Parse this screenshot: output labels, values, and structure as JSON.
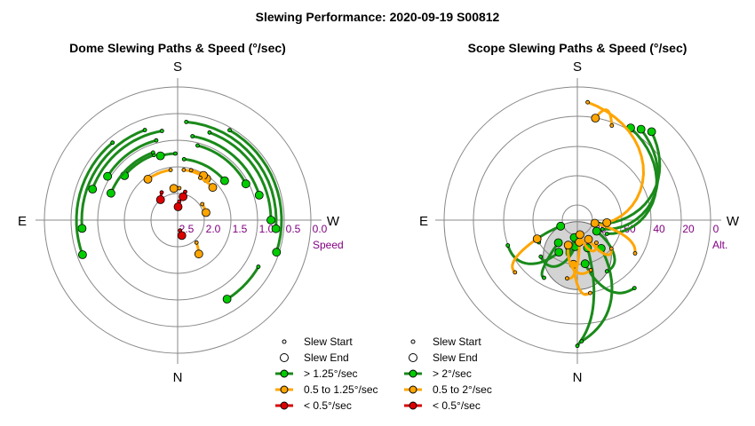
{
  "page_title": "Slewing Performance: 2020-09-19 S00812",
  "colors": {
    "fast": "#00cc00",
    "fast_line": "#1a8a1a",
    "medium": "#ffa500",
    "slow": "#dd0000",
    "grid": "#888888",
    "tick": "#800080",
    "obstruction": "#d3d3d3"
  },
  "chart_data": [
    {
      "type": "polar",
      "title": "Dome Slewing Paths & Speed (°/sec)",
      "cardinals": {
        "top": "S",
        "left": "E",
        "right": "W",
        "bottom": "N"
      },
      "radial_ticks": [
        "2.5",
        "2.0",
        "1.5",
        "1.0",
        "0.5",
        "0.0"
      ],
      "radial_axis_label": "Speed",
      "rmin": 0.0,
      "rmax": 2.5,
      "legend": [
        {
          "marker": "start",
          "label": "Slew Start"
        },
        {
          "marker": "end",
          "label": "Slew End"
        },
        {
          "marker": "fast",
          "label": "> 1.25°/sec"
        },
        {
          "marker": "medium",
          "label": "0.5 to 1.25°/sec"
        },
        {
          "marker": "slow",
          "label": "< 0.5°/sec"
        }
      ],
      "slews": [
        {
          "speed": "slow",
          "r1": 0.35,
          "a1": 5,
          "r2": 0.25,
          "a2": 2
        },
        {
          "speed": "slow",
          "r1": 0.55,
          "a1": 15,
          "r2": 0.45,
          "a2": 13
        },
        {
          "speed": "slow",
          "r1": 0.6,
          "a1": -30,
          "r2": 0.5,
          "a2": -40
        },
        {
          "speed": "slow",
          "r1": 0.2,
          "a1": 167,
          "r2": 0.3,
          "a2": 165
        },
        {
          "speed": "medium",
          "r1": 0.6,
          "a1": 3,
          "r2": 0.6,
          "a2": -7
        },
        {
          "speed": "medium",
          "r1": 0.95,
          "a1": -8,
          "r2": 0.95,
          "a2": -36
        },
        {
          "speed": "medium",
          "r1": 0.95,
          "a1": 7,
          "r2": 0.95,
          "a2": 35
        },
        {
          "speed": "medium",
          "r1": 0.97,
          "a1": 15,
          "r2": 0.97,
          "a2": 30
        },
        {
          "speed": "medium",
          "r1": 0.55,
          "a1": 57,
          "r2": 0.55,
          "a2": 75
        },
        {
          "speed": "medium",
          "r1": 0.9,
          "a1": 28,
          "r2": 0.9,
          "a2": 47
        },
        {
          "speed": "medium",
          "r1": 0.55,
          "a1": 140,
          "r2": 0.75,
          "a2": 148
        },
        {
          "speed": "fast",
          "r1": 1.25,
          "a1": -2,
          "r2": 1.25,
          "a2": -15
        },
        {
          "speed": "fast",
          "r1": 1.3,
          "a1": -20,
          "r2": 1.3,
          "a2": -50
        },
        {
          "speed": "fast",
          "r1": 1.15,
          "a1": 6,
          "r2": 1.15,
          "a2": 50
        },
        {
          "speed": "fast",
          "r1": 1.35,
          "a1": -20,
          "r2": 1.35,
          "a2": -68
        },
        {
          "speed": "fast",
          "r1": 1.45,
          "a1": 15,
          "r2": 1.45,
          "a2": 62
        },
        {
          "speed": "fast",
          "r1": 1.55,
          "a1": -15,
          "r2": 1.55,
          "a2": -58
        },
        {
          "speed": "fast",
          "r1": 1.6,
          "a1": 10,
          "r2": 1.6,
          "a2": 73
        },
        {
          "speed": "fast",
          "r1": 1.7,
          "a1": -10,
          "r2": 1.7,
          "a2": -70
        },
        {
          "speed": "fast",
          "r1": 1.75,
          "a1": 20,
          "r2": 1.75,
          "a2": 90
        },
        {
          "speed": "fast",
          "r1": 1.85,
          "a1": 5,
          "r2": 1.85,
          "a2": 95
        },
        {
          "speed": "fast",
          "r1": 1.8,
          "a1": -20,
          "r2": 1.8,
          "a2": -95
        },
        {
          "speed": "fast",
          "r1": 1.9,
          "a1": -40,
          "r2": 1.9,
          "a2": -110
        },
        {
          "speed": "fast",
          "r1": 1.95,
          "a1": 30,
          "r2": 1.95,
          "a2": 108
        },
        {
          "speed": "fast",
          "r1": 1.75,
          "a1": 120,
          "r2": 1.75,
          "a2": 148
        }
      ]
    },
    {
      "type": "polar",
      "title": "Scope Slewing Paths & Speed (°/sec)",
      "cardinals": {
        "top": "S",
        "left": "E",
        "right": "W",
        "bottom": "N"
      },
      "radial_ticks": [
        "80",
        "60",
        "40",
        "20",
        "0"
      ],
      "radial_axis_label": "Alt.",
      "rmin": 90,
      "rmax": 0,
      "obstruction": {
        "alt": 66,
        "az": 0,
        "radius_alt": 23
      },
      "legend": [
        {
          "marker": "start",
          "label": "Slew Start"
        },
        {
          "marker": "end",
          "label": "Slew End"
        },
        {
          "marker": "fast",
          "label": "> 2°/sec"
        },
        {
          "marker": "medium",
          "label": "0.5 to 2°/sec"
        },
        {
          "marker": "slow",
          "label": "< 0.5°/sec"
        }
      ],
      "slews": [
        {
          "speed": "fast",
          "alt1": 5,
          "az1": 180,
          "alt2": 70,
          "az2": 160
        },
        {
          "speed": "fast",
          "alt1": 8,
          "az1": 178,
          "alt2": 65,
          "az2": 140
        },
        {
          "speed": "fast",
          "alt1": 50,
          "az1": 150,
          "alt2": 75,
          "az2": 120
        },
        {
          "speed": "fast",
          "alt1": 45,
          "az1": 210,
          "alt2": 70,
          "az2": 220
        },
        {
          "speed": "fast",
          "alt1": 60,
          "az1": 240,
          "alt2": 78,
          "az2": 250
        },
        {
          "speed": "fast",
          "alt1": 40,
          "az1": 250,
          "alt2": 65,
          "az2": 210
        },
        {
          "speed": "fast",
          "alt1": 55,
          "az1": 225,
          "alt2": 72,
          "az2": 185
        },
        {
          "speed": "fast",
          "alt1": 30,
          "az1": 140,
          "alt2": 60,
          "az2": 170
        },
        {
          "speed": "fast",
          "alt1": 75,
          "az1": 100,
          "alt2": 12,
          "az2": 40
        },
        {
          "speed": "fast",
          "alt1": 72,
          "az1": 110,
          "alt2": 15,
          "az2": 35
        },
        {
          "speed": "fast",
          "alt1": 68,
          "az1": 115,
          "alt2": 18,
          "az2": 30
        },
        {
          "speed": "fast",
          "alt1": 70,
          "az1": 200,
          "alt2": 78,
          "az2": 190
        },
        {
          "speed": "medium",
          "alt1": 40,
          "az1": 170,
          "alt2": 60,
          "az2": 185
        },
        {
          "speed": "medium",
          "alt1": 50,
          "az1": 190,
          "alt2": 75,
          "az2": 175
        },
        {
          "speed": "medium",
          "alt1": 45,
          "az1": 120,
          "alt2": 78,
          "az2": 100
        },
        {
          "speed": "medium",
          "alt1": 55,
          "az1": 165,
          "alt2": 72,
          "az2": 200
        },
        {
          "speed": "medium",
          "alt1": 35,
          "az1": 230,
          "alt2": 60,
          "az2": 245
        },
        {
          "speed": "medium",
          "alt1": 60,
          "az1": 130,
          "alt2": 75,
          "az2": 150
        },
        {
          "speed": "medium",
          "alt1": 10,
          "az1": 5,
          "alt2": 70,
          "az2": 95
        },
        {
          "speed": "medium",
          "alt1": 22,
          "az1": 20,
          "alt2": 20,
          "az2": 10
        },
        {
          "speed": "medium",
          "alt1": 70,
          "az1": 140,
          "alt2": 80,
          "az2": 170
        }
      ]
    }
  ]
}
